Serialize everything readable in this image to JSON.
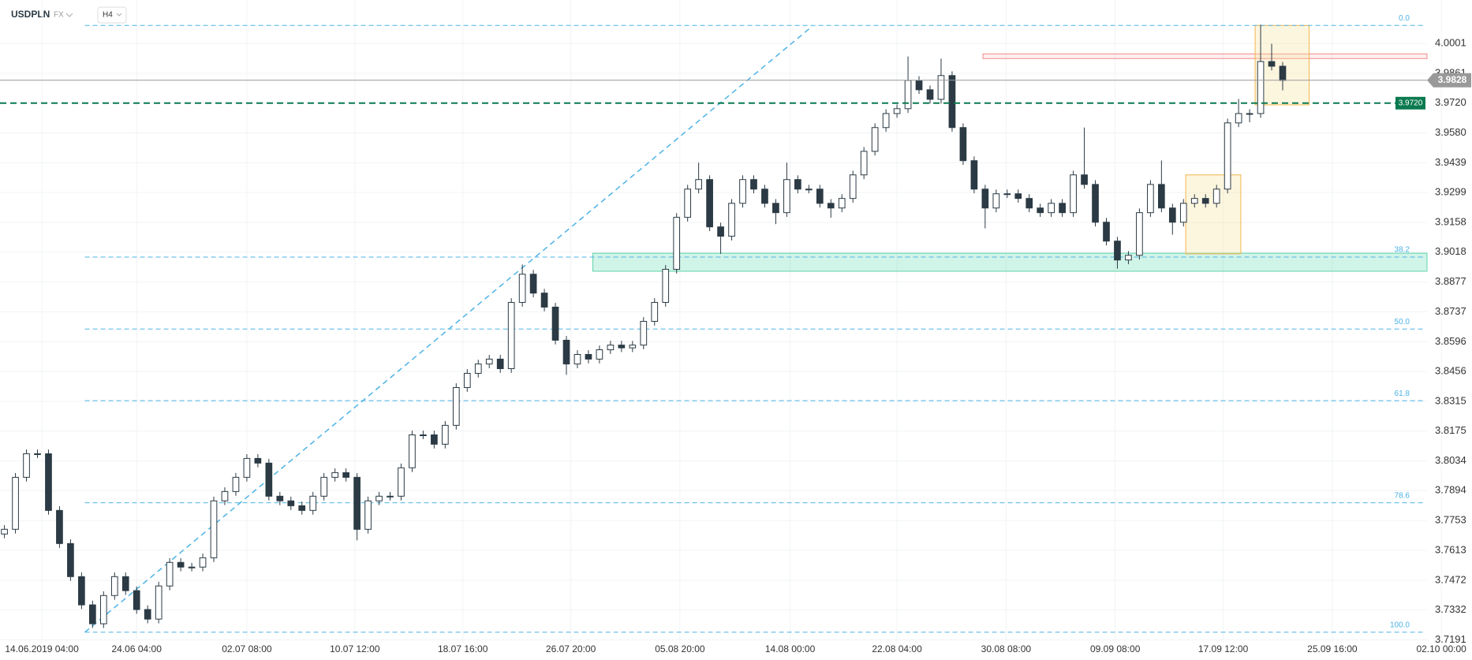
{
  "chart_data": {
    "type": "candlestick",
    "symbol": "USDPLN",
    "market": "FX",
    "interval": "H4",
    "open": [
      3.769,
      3.7712,
      3.7957,
      3.8068,
      3.8068,
      3.7801,
      3.7645,
      3.7489,
      3.7356,
      3.7267,
      3.74,
      3.7489,
      3.7423,
      3.7334,
      3.7289,
      3.7445,
      3.7556,
      3.7534,
      3.7534,
      3.7578,
      3.7846,
      3.789,
      3.7957,
      3.8046,
      3.8024,
      3.7868,
      3.7846,
      3.7823,
      3.7801,
      3.7868,
      3.7957,
      3.7979,
      3.7957,
      3.7712,
      3.7846,
      3.7868,
      3.7868,
      3.8002,
      3.8157,
      3.8157,
      3.8113,
      3.8202,
      3.838,
      3.8447,
      3.8491,
      3.8514,
      3.8469,
      3.8781,
      3.8914,
      3.8825,
      3.8759,
      3.8603,
      3.8491,
      3.8536,
      3.8514,
      3.8558,
      3.858,
      3.8567,
      3.858,
      3.8692,
      3.8781,
      3.8937,
      3.9182,
      3.9315,
      3.936,
      3.9137,
      3.9093,
      3.9248,
      3.936,
      3.9315,
      3.9248,
      3.9204,
      3.936,
      3.9315,
      3.9315,
      3.9248,
      3.9226,
      3.9271,
      3.9382,
      3.9493,
      3.9605,
      3.9671,
      3.9694,
      3.9827,
      3.9783,
      3.9738,
      3.985,
      3.9605,
      3.9449,
      3.9315,
      3.9226,
      3.9293,
      3.9293,
      3.9271,
      3.9226,
      3.9204,
      3.9248,
      3.9204,
      3.9382,
      3.9337,
      3.9159,
      3.907,
      3.8981,
      3.9003,
      3.9204,
      3.9337,
      3.9226,
      3.9159,
      3.9248,
      3.9271,
      3.9248,
      3.9315,
      3.9627,
      3.9671,
      3.9671,
      3.9916,
      3.9894
    ],
    "high": [
      3.7732,
      3.7977,
      3.8088,
      3.8088,
      3.8088,
      3.7821,
      3.7665,
      3.7509,
      3.7376,
      3.742,
      3.7509,
      3.7509,
      3.7443,
      3.7354,
      3.7465,
      3.7576,
      3.7576,
      3.7554,
      3.7598,
      3.7866,
      3.791,
      3.7977,
      3.8066,
      3.8066,
      3.8044,
      3.7888,
      3.7866,
      3.7843,
      3.7888,
      3.7977,
      3.7999,
      3.7999,
      3.7977,
      3.7866,
      3.7888,
      3.7888,
      3.8022,
      3.8177,
      3.8177,
      3.8177,
      3.8222,
      3.84,
      3.8467,
      3.8511,
      3.8534,
      3.8534,
      3.8801,
      3.896,
      3.8934,
      3.8845,
      3.8779,
      3.8623,
      3.8556,
      3.8556,
      3.8578,
      3.86,
      3.86,
      3.86,
      3.8712,
      3.8801,
      3.8957,
      3.9202,
      3.9335,
      3.944,
      3.938,
      3.9157,
      3.9268,
      3.938,
      3.938,
      3.9335,
      3.9268,
      3.944,
      3.938,
      3.9335,
      3.9335,
      3.9268,
      3.9291,
      3.9402,
      3.9513,
      3.9625,
      3.9691,
      3.9714,
      3.994,
      3.9847,
      3.9803,
      3.993,
      3.987,
      3.9625,
      3.9469,
      3.9335,
      3.9313,
      3.9313,
      3.9313,
      3.9291,
      3.9246,
      3.9268,
      3.9268,
      3.9402,
      3.9605,
      3.9357,
      3.9179,
      3.909,
      3.9023,
      3.9224,
      3.9357,
      3.945,
      3.9246,
      3.9268,
      3.9291,
      3.9291,
      3.9335,
      3.9647,
      3.974,
      3.9691,
      4.009,
      4.0,
      3.9914
    ],
    "low": [
      3.767,
      3.7692,
      3.7937,
      3.8048,
      3.7781,
      3.7625,
      3.7469,
      3.7336,
      3.7247,
      3.7247,
      3.738,
      3.7403,
      3.7314,
      3.7269,
      3.7269,
      3.7425,
      3.7514,
      3.7514,
      3.7514,
      3.7558,
      3.7826,
      3.787,
      3.7937,
      3.8004,
      3.7848,
      3.7826,
      3.7803,
      3.7781,
      3.7781,
      3.7848,
      3.7937,
      3.7937,
      3.766,
      3.7692,
      3.7826,
      3.7848,
      3.7848,
      3.7982,
      3.8137,
      3.8093,
      3.8093,
      3.8182,
      3.836,
      3.8427,
      3.8471,
      3.8449,
      3.8449,
      3.8761,
      3.8805,
      3.8739,
      3.8583,
      3.844,
      3.8471,
      3.8494,
      3.8494,
      3.8538,
      3.8547,
      3.8547,
      3.856,
      3.8672,
      3.8761,
      3.8917,
      3.9162,
      3.9295,
      3.9117,
      3.901,
      3.9073,
      3.9228,
      3.9295,
      3.9228,
      3.915,
      3.9184,
      3.9295,
      3.9295,
      3.9228,
      3.918,
      3.9206,
      3.9251,
      3.9362,
      3.9473,
      3.9585,
      3.9651,
      3.9674,
      3.9763,
      3.9718,
      3.9718,
      3.9585,
      3.9429,
      3.9295,
      3.913,
      3.9206,
      3.9273,
      3.9251,
      3.9206,
      3.9184,
      3.9184,
      3.9184,
      3.9184,
      3.9317,
      3.9139,
      3.905,
      3.894,
      3.8961,
      3.8983,
      3.9184,
      3.9206,
      3.91,
      3.9139,
      3.9228,
      3.9228,
      3.9228,
      3.9295,
      3.9607,
      3.963,
      3.9651,
      3.9874,
      3.978
    ],
    "close": [
      3.7712,
      3.7957,
      3.8068,
      3.8068,
      3.7801,
      3.7645,
      3.7489,
      3.7356,
      3.7267,
      3.74,
      3.7489,
      3.7423,
      3.7334,
      3.7289,
      3.7445,
      3.7556,
      3.7534,
      3.7534,
      3.7578,
      3.7846,
      3.789,
      3.7957,
      3.8046,
      3.8024,
      3.7868,
      3.7846,
      3.7823,
      3.7801,
      3.7868,
      3.7957,
      3.7979,
      3.7957,
      3.7712,
      3.7846,
      3.7868,
      3.7868,
      3.8002,
      3.8157,
      3.8157,
      3.8113,
      3.8202,
      3.838,
      3.8447,
      3.8491,
      3.8514,
      3.8469,
      3.8781,
      3.8914,
      3.8825,
      3.8759,
      3.8603,
      3.8491,
      3.8536,
      3.8514,
      3.8558,
      3.858,
      3.8567,
      3.858,
      3.8692,
      3.8781,
      3.8937,
      3.9182,
      3.9315,
      3.936,
      3.9137,
      3.9093,
      3.9248,
      3.936,
      3.9315,
      3.9248,
      3.9204,
      3.936,
      3.9315,
      3.9315,
      3.9248,
      3.9226,
      3.9271,
      3.9382,
      3.9493,
      3.9605,
      3.9671,
      3.9694,
      3.9827,
      3.9783,
      3.9738,
      3.985,
      3.9605,
      3.9449,
      3.9315,
      3.9226,
      3.9293,
      3.9293,
      3.9271,
      3.9226,
      3.9204,
      3.9248,
      3.9204,
      3.9382,
      3.9337,
      3.9159,
      3.907,
      3.8981,
      3.9003,
      3.9204,
      3.9337,
      3.9226,
      3.9159,
      3.9248,
      3.9271,
      3.9248,
      3.9315,
      3.9627,
      3.9671,
      3.9671,
      3.9916,
      3.9894,
      3.9827
    ],
    "up_color": "#ffffff",
    "down_color": "#2b3a44",
    "outline": "#2b3a44",
    "xlim": [
      -0.4,
      129.1
    ],
    "xticks": [
      {
        "value": 3.4,
        "label": "14.06.2019  04:00"
      },
      {
        "value": 12.0,
        "label": "24.06  04:00"
      },
      {
        "value": 22.0,
        "label": "02.07  08:00"
      },
      {
        "value": 31.8,
        "label": "10.07  12:00"
      },
      {
        "value": 41.6,
        "label": "18.07  16:00"
      },
      {
        "value": 51.4,
        "label": "26.07  20:00"
      },
      {
        "value": 61.3,
        "label": "05.08  20:00"
      },
      {
        "value": 71.3,
        "label": "14.08  00:00"
      },
      {
        "value": 81.0,
        "label": "22.08  04:00"
      },
      {
        "value": 90.9,
        "label": "30.08  08:00"
      },
      {
        "value": 100.8,
        "label": "09.09  08:00"
      },
      {
        "value": 110.6,
        "label": "17.09  12:00"
      },
      {
        "value": 120.5,
        "label": "25.09  16:00"
      },
      {
        "value": 130.4,
        "label": "02.10  00:00"
      }
    ],
    "ylim": [
      3.7178,
      4.0206
    ],
    "yticks": [
      4.0001,
      3.9861,
      {
        "value": 3.972,
        "label": "3.9720"
      },
      {
        "value": 3.958,
        "label": "3.9580"
      },
      3.9439,
      3.9299,
      3.9158,
      3.9018,
      3.8877,
      3.8737,
      3.8596,
      3.8456,
      3.8315,
      3.8175,
      3.8034,
      3.7894,
      3.7753,
      3.7613,
      3.7472,
      3.7332,
      3.7191
    ],
    "grid": true,
    "fib_start": 7.3,
    "fib_levels": [
      {
        "value": 4.0086,
        "label": "0.0"
      },
      {
        "value": 3.8995,
        "label": "38.2"
      },
      {
        "value": 3.8656,
        "label": "50.0"
      },
      {
        "value": 3.8318,
        "label": "61.8"
      },
      {
        "value": 3.7837,
        "label": "78.6"
      },
      {
        "value": 3.7227,
        "label": "100.0"
      }
    ],
    "fib_color": "#4db3e6",
    "trendline": {
      "x": [
        7.3,
        73.3
      ],
      "y": [
        3.7227,
        4.0082
      ],
      "color": "#4db3e6"
    },
    "zones": [
      {
        "x": [
          53.4,
          129.1
        ],
        "y": [
          3.8928,
          3.9013
        ],
        "fill": "rgba(46,204,150,0.22)",
        "stroke": "#5fd3a8"
      },
      {
        "x": [
          88.8,
          129.1
        ],
        "y": [
          3.993,
          3.9952
        ],
        "fill": "rgba(240,120,120,0.12)",
        "stroke": "#f08a8a"
      },
      {
        "x": [
          107.2,
          112.2
        ],
        "y": [
          3.901,
          3.9382
        ],
        "fill": "rgba(250,225,150,0.3)",
        "stroke": "#f2b64c"
      },
      {
        "x": [
          113.5,
          118.4
        ],
        "y": [
          3.9712,
          4.0086
        ],
        "fill": "rgba(250,225,150,0.3)",
        "stroke": "#f2b64c"
      }
    ],
    "alert_line": {
      "value": 3.972,
      "label": "3.9720",
      "color": "#0b7a50"
    },
    "price_line": {
      "value": 3.9828,
      "color": "#999999"
    }
  }
}
